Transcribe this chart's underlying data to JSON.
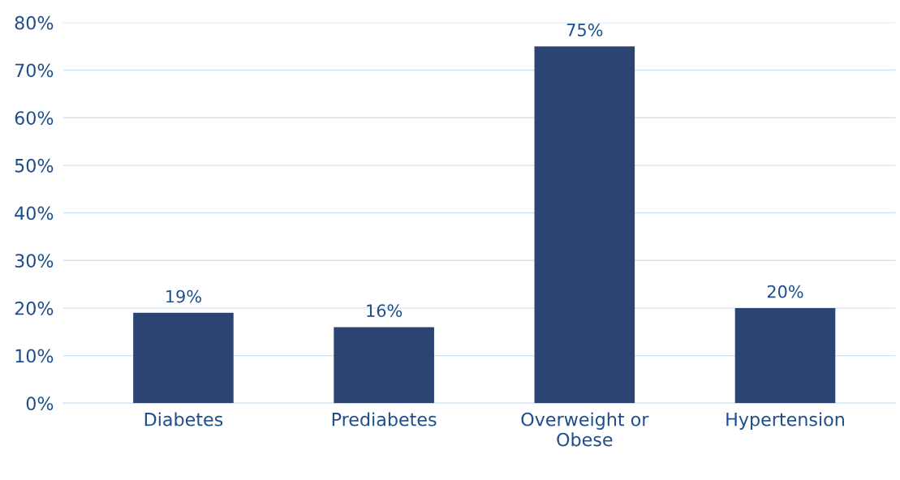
{
  "chart_data": {
    "type": "bar",
    "categories": [
      "Diabetes",
      "Prediabetes",
      "Overweight or\nObese",
      "Hypertension"
    ],
    "values": [
      19,
      16,
      75,
      20
    ],
    "value_labels": [
      "19%",
      "16%",
      "75%",
      "20%"
    ],
    "color": "#2b4471",
    "ylim": [
      0,
      80
    ],
    "yticks": [
      {
        "value": 0,
        "label": "0%"
      },
      {
        "value": 10,
        "label": "10%"
      },
      {
        "value": 20,
        "label": "20%"
      },
      {
        "value": 30,
        "label": "30%"
      },
      {
        "value": 40,
        "label": "40%"
      },
      {
        "value": 50,
        "label": "50%"
      },
      {
        "value": 60,
        "label": "60%"
      },
      {
        "value": 70,
        "label": "70%"
      },
      {
        "value": 80,
        "label": "80%"
      }
    ],
    "grid": "y"
  }
}
